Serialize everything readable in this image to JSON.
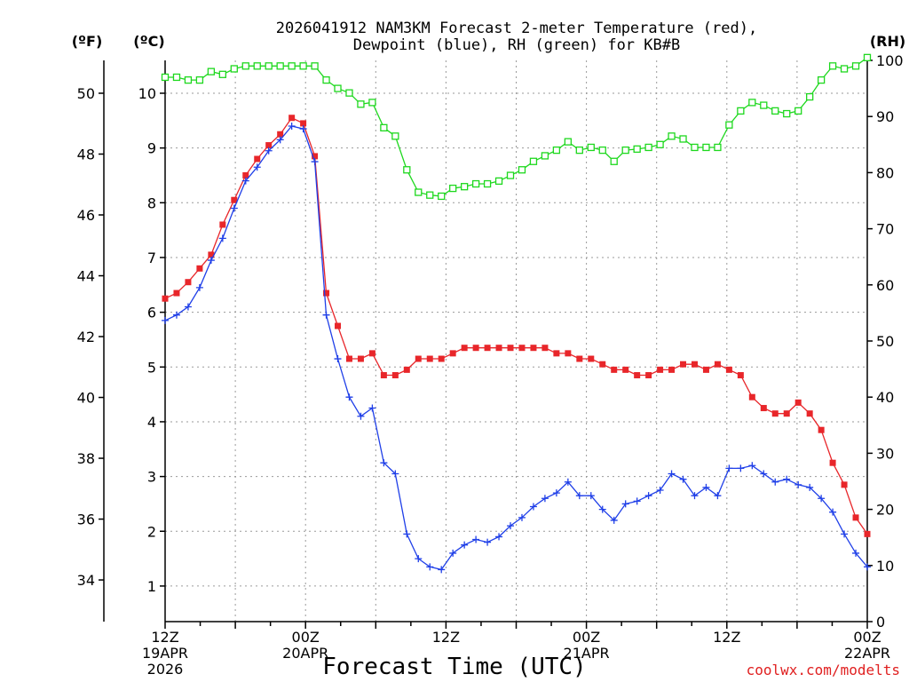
{
  "chart_data": {
    "type": "line",
    "title_line1": "2026041912 NAM3KM Forecast 2-meter Temperature (red),",
    "title_line2": "Dewpoint (blue), RH (green) for KB#B",
    "xlabel": "Forecast Time (UTC)",
    "credit": "coolwx.com/modelts",
    "left_outer_unit": "(ºF)",
    "left_inner_unit": "(ºC)",
    "right_unit": "(RH)",
    "x_hours_range": [
      0,
      60
    ],
    "x_ticks": [
      {
        "hour": 0,
        "lines": [
          "12Z",
          "19APR",
          "2026"
        ]
      },
      {
        "hour": 12,
        "lines": [
          "00Z",
          "20APR"
        ]
      },
      {
        "hour": 24,
        "lines": [
          "12Z"
        ]
      },
      {
        "hour": 36,
        "lines": [
          "00Z",
          "21APR"
        ]
      },
      {
        "hour": 48,
        "lines": [
          "12Z"
        ]
      },
      {
        "hour": 60,
        "lines": [
          "00Z",
          "22APR"
        ]
      }
    ],
    "celsius_range": [
      0.35,
      10.6
    ],
    "celsius_ticks": [
      1,
      2,
      3,
      4,
      5,
      6,
      7,
      8,
      9,
      10
    ],
    "fahrenheit_ticks": [
      34,
      36,
      38,
      40,
      42,
      44,
      46,
      48,
      50
    ],
    "rh_range": [
      0,
      100
    ],
    "rh_ticks": [
      0,
      10,
      20,
      30,
      40,
      50,
      60,
      70,
      80,
      90,
      100
    ],
    "series": [
      {
        "name": "Temperature",
        "unit": "C",
        "color": "#e8262a",
        "marker": "filled-square",
        "values": [
          6.25,
          6.35,
          6.55,
          6.8,
          7.05,
          7.6,
          8.05,
          8.5,
          8.8,
          9.05,
          9.25,
          9.55,
          9.45,
          8.85,
          6.35,
          5.75,
          5.15,
          5.15,
          5.25,
          4.85,
          4.85,
          4.95,
          5.15,
          5.15,
          5.15,
          5.25,
          5.35,
          5.35,
          5.35,
          5.35,
          5.35,
          5.35,
          5.35,
          5.35,
          5.25,
          5.25,
          5.15,
          5.15,
          5.05,
          4.95,
          4.95,
          4.85,
          4.85,
          4.95,
          4.95,
          5.05,
          5.05,
          4.95,
          5.05,
          4.95,
          4.85,
          4.45,
          4.25,
          4.15,
          4.15,
          4.35,
          4.15,
          3.85,
          3.25,
          2.85,
          2.25,
          1.95
        ]
      },
      {
        "name": "Dewpoint",
        "unit": "C",
        "color": "#1f3fe8",
        "marker": "plus",
        "values": [
          5.85,
          5.95,
          6.1,
          6.45,
          6.95,
          7.35,
          7.9,
          8.4,
          8.65,
          8.95,
          9.15,
          9.4,
          9.35,
          8.75,
          5.95,
          5.15,
          4.45,
          4.1,
          4.25,
          3.25,
          3.05,
          1.95,
          1.5,
          1.35,
          1.3,
          1.6,
          1.75,
          1.85,
          1.8,
          1.9,
          2.1,
          2.25,
          2.45,
          2.6,
          2.7,
          2.9,
          2.65,
          2.65,
          2.4,
          2.2,
          2.5,
          2.55,
          2.65,
          2.75,
          3.05,
          2.95,
          2.65,
          2.8,
          2.65,
          3.15,
          3.15,
          3.2,
          3.05,
          2.9,
          2.95,
          2.85,
          2.8,
          2.6,
          2.35,
          1.95,
          1.6,
          1.35
        ]
      },
      {
        "name": "RH",
        "unit": "%",
        "color": "#1ed81e",
        "marker": "hollow-square",
        "values": [
          97,
          97,
          96.5,
          96.5,
          98,
          97.5,
          98.5,
          99,
          99,
          99,
          99,
          99,
          99,
          99,
          96.5,
          95,
          94.2,
          92.2,
          92.5,
          88,
          86.5,
          80.5,
          76.5,
          76,
          75.8,
          77.2,
          77.5,
          78,
          78,
          78.5,
          79.5,
          80.5,
          82,
          83,
          84,
          85.5,
          84,
          84.5,
          84,
          82,
          84,
          84.2,
          84.5,
          85,
          86.5,
          86,
          84.5,
          84.5,
          84.5,
          88.5,
          91,
          92.5,
          92,
          91,
          90.5,
          91,
          93.5,
          96.5,
          99,
          98.5,
          99,
          100.5
        ]
      }
    ]
  }
}
